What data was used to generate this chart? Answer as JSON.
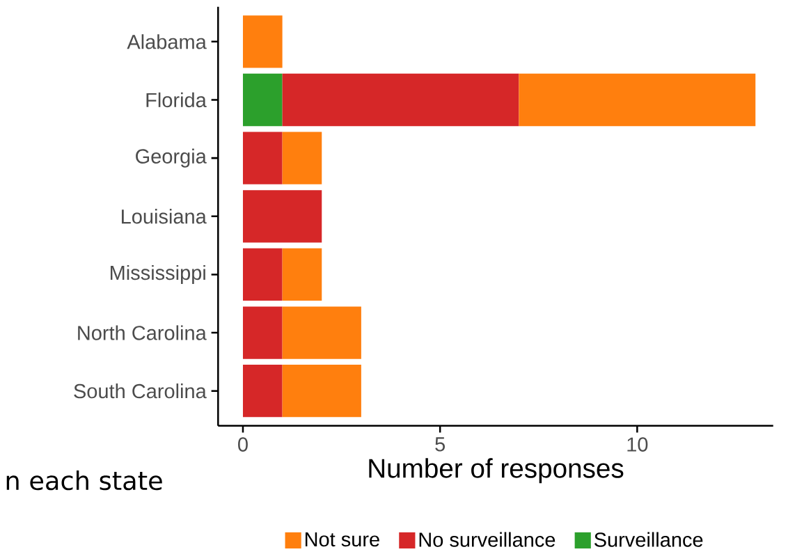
{
  "chart_data": {
    "type": "bar",
    "orientation": "horizontal",
    "stacked": true,
    "xlabel": "Number of responses",
    "categories": [
      "Alabama",
      "Florida",
      "Georgia",
      "Louisiana",
      "Mississippi",
      "North Carolina",
      "South Carolina"
    ],
    "series": [
      {
        "name": "Surveillance",
        "color": "#2ca02c",
        "values": [
          null,
          1,
          null,
          null,
          null,
          null,
          null
        ]
      },
      {
        "name": "No surveillance",
        "color": "#d62728",
        "values": [
          null,
          6,
          1,
          2,
          1,
          1,
          1
        ]
      },
      {
        "name": "Not sure",
        "color": "#ff7f0e",
        "values": [
          1,
          6,
          1,
          null,
          1,
          2,
          2
        ]
      }
    ],
    "xlim": [
      -0.63,
      13.45
    ],
    "xticks": [
      0,
      5,
      10
    ],
    "grid": false,
    "legend": "bottom",
    "annotations": [
      "n each state"
    ]
  }
}
